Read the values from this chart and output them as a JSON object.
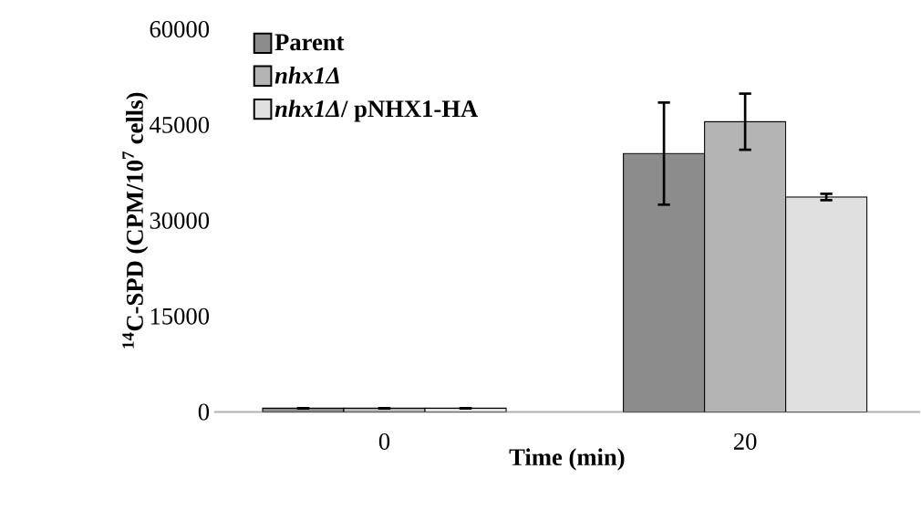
{
  "chart_data": {
    "type": "bar",
    "xlabel": "Time (min)",
    "ylabel": "$^{14}$C-SPD (CPM/10$^{7}$ cells)",
    "categories": [
      "0",
      "20"
    ],
    "series": [
      {
        "name": "Parent",
        "color": "#8c8c8c",
        "values": [
          600,
          40500
        ],
        "errors": [
          null,
          8000
        ]
      },
      {
        "name": "*nhx1Δ*",
        "color": "#b4b4b4",
        "values": [
          600,
          45500
        ],
        "errors": [
          null,
          4400
        ]
      },
      {
        "name": "*nhx1Δ*/ pNHX1-HA",
        "color": "#e0e0e0",
        "values": [
          600,
          33700
        ],
        "errors": [
          null,
          500
        ]
      }
    ],
    "ylim": [
      0,
      60000
    ],
    "yticks": [
      0,
      15000,
      30000,
      45000,
      60000
    ],
    "grid": false,
    "legend": "top left"
  }
}
